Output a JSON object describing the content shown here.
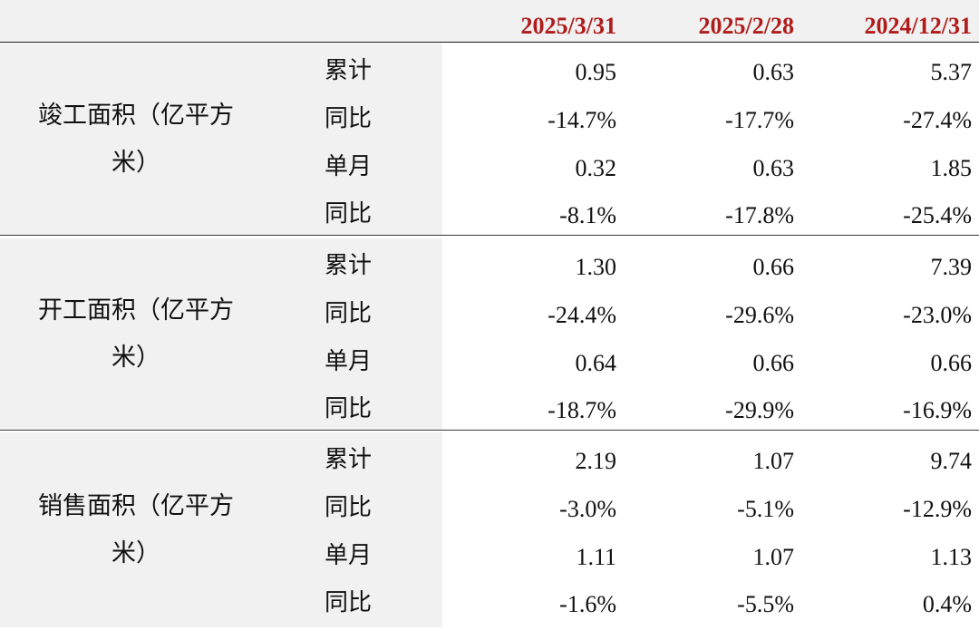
{
  "header": {
    "columns": [
      "2025/3/31",
      "2025/2/28",
      "2024/12/31"
    ],
    "accent_color": "#b01c1c"
  },
  "groups": [
    {
      "label_line1": "竣工面积（亿平方",
      "label_line2": "米）",
      "rows": [
        {
          "label": "累计",
          "values": [
            "0.95",
            "0.63",
            "5.37"
          ]
        },
        {
          "label": "同比",
          "values": [
            "-14.7%",
            "-17.7%",
            "-27.4%"
          ]
        },
        {
          "label": "单月",
          "values": [
            "0.32",
            "0.63",
            "1.85"
          ]
        },
        {
          "label": "同比",
          "values": [
            "-8.1%",
            "-17.8%",
            "-25.4%"
          ]
        }
      ]
    },
    {
      "label_line1": "开工面积（亿平方",
      "label_line2": "米）",
      "rows": [
        {
          "label": "累计",
          "values": [
            "1.30",
            "0.66",
            "7.39"
          ]
        },
        {
          "label": "同比",
          "values": [
            "-24.4%",
            "-29.6%",
            "-23.0%"
          ]
        },
        {
          "label": "单月",
          "values": [
            "0.64",
            "0.66",
            "0.66"
          ]
        },
        {
          "label": "同比",
          "values": [
            "-18.7%",
            "-29.9%",
            "-16.9%"
          ]
        }
      ]
    },
    {
      "label_line1": "销售面积（亿平方",
      "label_line2": "米）",
      "rows": [
        {
          "label": "累计",
          "values": [
            "2.19",
            "1.07",
            "9.74"
          ]
        },
        {
          "label": "同比",
          "values": [
            "-3.0%",
            "-5.1%",
            "-12.9%"
          ]
        },
        {
          "label": "单月",
          "values": [
            "1.11",
            "1.07",
            "1.13"
          ]
        },
        {
          "label": "同比",
          "values": [
            "-1.6%",
            "-5.5%",
            "0.4%"
          ]
        }
      ]
    }
  ]
}
